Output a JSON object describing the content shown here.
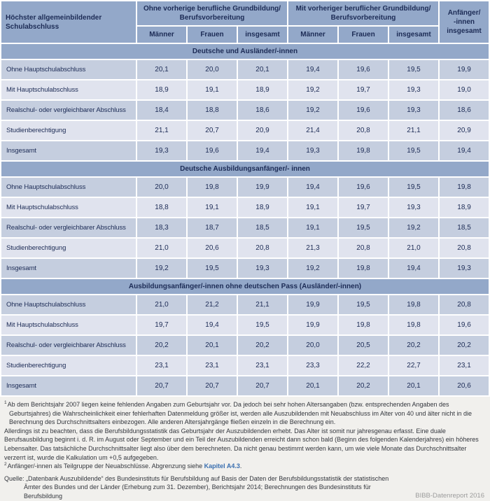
{
  "table": {
    "corner": [
      "Höchster allgemeinbildender",
      "Schulabschluss"
    ],
    "groups": [
      {
        "lines": [
          "Ohne vorherige berufliche Grundbildung/",
          "Berufsvorbereitung"
        ],
        "sub": [
          "Männer",
          "Frauen",
          "insgesamt"
        ]
      },
      {
        "lines": [
          "Mit vorheriger beruflicher Grundbildung/",
          "Berufsvorbereitung"
        ],
        "sub": [
          "Männer",
          "Frauen",
          "insgesamt"
        ]
      }
    ],
    "last_col": {
      "lines": [
        "Anfänger/",
        "-innen",
        "insgesamt"
      ]
    },
    "sections": [
      {
        "title": "Deutsche und Ausländer/-innen",
        "rows": [
          {
            "label": "Ohne Hauptschulabschluss",
            "values": [
              "20,1",
              "20,0",
              "20,1",
              "19,4",
              "19,6",
              "19,5",
              "19,9"
            ]
          },
          {
            "label": "Mit Hauptschulabschluss",
            "values": [
              "18,9",
              "19,1",
              "18,9",
              "19,2",
              "19,7",
              "19,3",
              "19,0"
            ]
          },
          {
            "label": "Realschul- oder vergleichbarer Abschluss",
            "values": [
              "18,4",
              "18,8",
              "18,6",
              "19,2",
              "19,6",
              "19,3",
              "18,6"
            ]
          },
          {
            "label": "Studienberechtigung",
            "values": [
              "21,1",
              "20,7",
              "20,9",
              "21,4",
              "20,8",
              "21,1",
              "20,9"
            ]
          },
          {
            "label": "Insgesamt",
            "values": [
              "19,3",
              "19,6",
              "19,4",
              "19,3",
              "19,8",
              "19,5",
              "19,4"
            ]
          }
        ]
      },
      {
        "title": "Deutsche Ausbildungsanfänger/- innen",
        "rows": [
          {
            "label": "Ohne Hauptschulabschluss",
            "values": [
              "20,0",
              "19,8",
              "19,9",
              "19,4",
              "19,6",
              "19,5",
              "19,8"
            ]
          },
          {
            "label": "Mit Hauptschulabschluss",
            "values": [
              "18,8",
              "19,1",
              "18,9",
              "19,1",
              "19,7",
              "19,3",
              "18,9"
            ]
          },
          {
            "label": "Realschul- oder vergleichbarer Abschluss",
            "values": [
              "18,3",
              "18,7",
              "18,5",
              "19,1",
              "19,5",
              "19,2",
              "18,5"
            ]
          },
          {
            "label": "Studienberechtigung",
            "values": [
              "21,0",
              "20,6",
              "20,8",
              "21,3",
              "20,8",
              "21,0",
              "20,8"
            ]
          },
          {
            "label": "Insgesamt",
            "values": [
              "19,2",
              "19,5",
              "19,3",
              "19,2",
              "19,8",
              "19,4",
              "19,3"
            ]
          }
        ]
      },
      {
        "title": "Ausbildungsanfänger/-innen ohne deutschen Pass (Ausländer/-innen)",
        "rows": [
          {
            "label": "Ohne Hauptschulabschluss",
            "values": [
              "21,0",
              "21,2",
              "21,1",
              "19,9",
              "19,5",
              "19,8",
              "20,8"
            ]
          },
          {
            "label": "Mit Hauptschulabschluss",
            "values": [
              "19,7",
              "19,4",
              "19,5",
              "19,9",
              "19,8",
              "19,8",
              "19,6"
            ]
          },
          {
            "label": "Realschul- oder vergleichbarer Abschluss",
            "values": [
              "20,2",
              "20,1",
              "20,2",
              "20,0",
              "20,5",
              "20,2",
              "20,2"
            ]
          },
          {
            "label": "Studienberechtigung",
            "values": [
              "23,1",
              "23,1",
              "23,1",
              "23,3",
              "22,2",
              "22,7",
              "23,1"
            ]
          },
          {
            "label": "Insgesamt",
            "values": [
              "20,7",
              "20,7",
              "20,7",
              "20,1",
              "20,2",
              "20,1",
              "20,6"
            ]
          }
        ]
      }
    ]
  },
  "footnotes": {
    "fn1_marker": "1",
    "fn1_text": "Ab dem Berichtsjahr 2007 liegen keine fehlenden Angaben zum Geburtsjahr vor. Da jedoch bei sehr hohen Altersangaben (bzw. entsprechenden Angaben des Geburtsjahres) die Wahrscheinlichkeit einer fehlerhaften Datenmeldung größer ist, werden alle Auszubildenden mit Neuabschluss im Alter von 40 und älter nicht in die Berechnung des Durchschnittsalters einbezogen. Alle anderen Altersjahrgänge fließen einzeln in die Berechnung ein.",
    "fn1_continuation": "Allerdings ist zu beachten, dass die Berufsbildungsstatistik das Geburtsjahr der Auszubildenden erhebt. Das Alter ist somit nur jahresgenau erfasst. Eine duale Berufsausbildung beginnt i. d. R. im August oder September und ein Teil der Auszubildenden erreicht dann schon bald (Beginn des folgenden Kalenderjahres) ein höheres Lebensalter. Das tatsächliche Durchschnittsalter liegt also über dem berechneten. Da nicht genau bestimmt werden kann, um wie viele Monate das Durchschnittsalter verzerrt ist, wurde die Kalkulation um +0,5 aufgegeben.",
    "fn2_marker": "2",
    "fn2_text": "Anfänger/-innen als Teilgruppe der Neuabschlüsse. Abgrenzung siehe ",
    "fn2_link": "Kapitel A4.3",
    "fn2_suffix": "."
  },
  "source": {
    "text": "Quelle: „Datenbank Auszubildende“ des Bundesinstituts für Berufsbildung auf Basis der Daten der Berufsbildungsstatistik der statistischen Ämter des Bundes und der Länder (Erhebung zum 31. Dezember), Berichtsjahr 2014; Berechnungen des Bundesinstituts für Berufsbildung",
    "brand": "BIBB-Datenreport 2016"
  },
  "colors": {
    "header_blue": "#93a8c9",
    "row_dark": "#c5cedf",
    "row_light": "#e0e3ee",
    "text_navy": "#1c2b55",
    "link_blue": "#3a6fb0",
    "brand_gray": "#9c9c9c",
    "footer_bg": "#f1f0ed"
  }
}
